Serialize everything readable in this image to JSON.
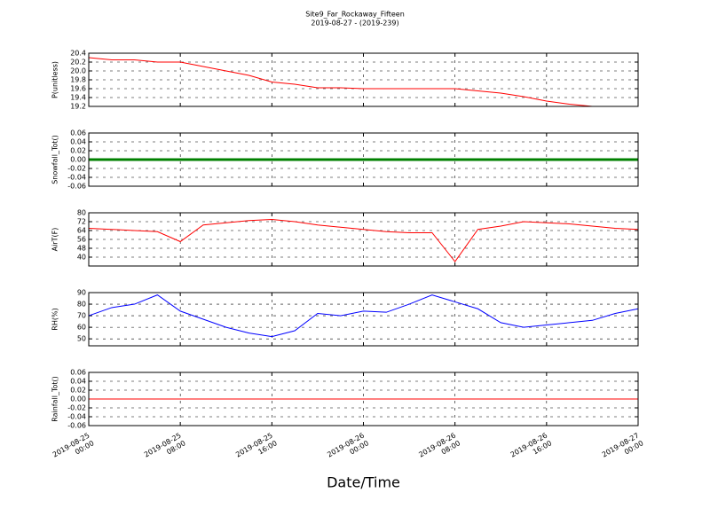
{
  "chart_data": [
    {
      "type": "line",
      "title": "Site9_Far_Rockaway_Fifteen",
      "subtitle": "2019-08-27 - (2019-239)",
      "ylabel": "P(unitless)",
      "color": "#ff0000",
      "grid": true,
      "x": [
        "2019-08-25 00:00",
        "2019-08-25 02:00",
        "2019-08-25 04:00",
        "2019-08-25 06:00",
        "2019-08-25 08:00",
        "2019-08-25 10:00",
        "2019-08-25 12:00",
        "2019-08-25 14:00",
        "2019-08-25 16:00",
        "2019-08-25 18:00",
        "2019-08-25 20:00",
        "2019-08-25 22:00",
        "2019-08-26 00:00",
        "2019-08-26 02:00",
        "2019-08-26 04:00",
        "2019-08-26 06:00",
        "2019-08-26 08:00",
        "2019-08-26 10:00",
        "2019-08-26 12:00",
        "2019-08-26 14:00",
        "2019-08-26 16:00",
        "2019-08-26 18:00",
        "2019-08-26 20:00",
        "2019-08-26 22:00",
        "2019-08-27 00:00"
      ],
      "values": [
        20.3,
        20.25,
        20.25,
        20.2,
        20.2,
        20.1,
        20.0,
        19.9,
        19.75,
        19.7,
        19.62,
        19.62,
        19.6,
        19.6,
        19.6,
        19.6,
        19.6,
        19.55,
        19.5,
        19.42,
        19.32,
        19.25,
        19.2,
        19.2,
        19.2
      ],
      "xlim": [
        "2019-08-25 00:00",
        "2019-08-27 00:00"
      ],
      "ylim": [
        19.2,
        20.4
      ],
      "yticks": [
        19.2,
        19.4,
        19.6,
        19.8,
        {
          "value": 20,
          "label": "20.0"
        },
        20.2,
        20.4
      ]
    },
    {
      "type": "line",
      "ylabel": "Snowfall_Tot()",
      "color": "#008000",
      "grid": true,
      "x": [
        "2019-08-25 00:00",
        "2019-08-27 00:00"
      ],
      "values": [
        0,
        0
      ],
      "xlim": [
        "2019-08-25 00:00",
        "2019-08-27 00:00"
      ],
      "ylim": [
        -0.06,
        0.06
      ],
      "yticks": [
        -0.06,
        -0.04,
        -0.02,
        {
          "value": 0,
          "label": "0.00"
        },
        0.02,
        0.04,
        0.06
      ]
    },
    {
      "type": "line",
      "ylabel": "AirT(F)",
      "color": "#ff0000",
      "grid": true,
      "x": [
        "2019-08-25 00:00",
        "2019-08-25 02:00",
        "2019-08-25 04:00",
        "2019-08-25 06:00",
        "2019-08-25 08:00",
        "2019-08-25 10:00",
        "2019-08-25 12:00",
        "2019-08-25 14:00",
        "2019-08-25 16:00",
        "2019-08-25 18:00",
        "2019-08-25 20:00",
        "2019-08-25 22:00",
        "2019-08-26 00:00",
        "2019-08-26 02:00",
        "2019-08-26 04:00",
        "2019-08-26 06:00",
        "2019-08-26 08:00",
        "2019-08-26 10:00",
        "2019-08-26 12:00",
        "2019-08-26 14:00",
        "2019-08-26 16:00",
        "2019-08-26 18:00",
        "2019-08-26 20:00",
        "2019-08-26 22:00",
        "2019-08-27 00:00"
      ],
      "values": [
        66,
        65,
        64,
        63,
        54,
        69,
        71,
        73,
        74,
        72,
        69,
        67,
        65,
        63,
        62,
        62,
        36,
        65,
        68,
        72,
        71,
        70,
        68,
        66,
        65
      ],
      "xlim": [
        "2019-08-25 00:00",
        "2019-08-27 00:00"
      ],
      "ylim": [
        32,
        80
      ],
      "yticks": [
        40,
        48,
        56,
        64,
        72,
        80
      ]
    },
    {
      "type": "line",
      "ylabel": "RH(%)",
      "color": "#0000ff",
      "grid": true,
      "x": [
        "2019-08-25 00:00",
        "2019-08-25 02:00",
        "2019-08-25 04:00",
        "2019-08-25 06:00",
        "2019-08-25 08:00",
        "2019-08-25 10:00",
        "2019-08-25 12:00",
        "2019-08-25 14:00",
        "2019-08-25 16:00",
        "2019-08-25 18:00",
        "2019-08-25 20:00",
        "2019-08-25 22:00",
        "2019-08-26 00:00",
        "2019-08-26 02:00",
        "2019-08-26 04:00",
        "2019-08-26 06:00",
        "2019-08-26 08:00",
        "2019-08-26 10:00",
        "2019-08-26 12:00",
        "2019-08-26 14:00",
        "2019-08-26 16:00",
        "2019-08-26 18:00",
        "2019-08-26 20:00",
        "2019-08-26 22:00",
        "2019-08-27 00:00"
      ],
      "values": [
        70,
        77,
        80,
        88,
        74,
        67,
        60,
        55,
        52,
        57,
        72,
        70,
        74,
        73,
        80,
        88,
        82,
        76,
        64,
        60,
        62,
        64,
        66,
        72,
        76
      ],
      "xlim": [
        "2019-08-25 00:00",
        "2019-08-27 00:00"
      ],
      "ylim": [
        44,
        90
      ],
      "yticks": [
        50,
        60,
        70,
        80,
        90
      ]
    },
    {
      "type": "line",
      "ylabel": "Rainfall_Tot()",
      "xlabel": "Date/Time",
      "color": "#ff0000",
      "grid": true,
      "x": [
        "2019-08-25 00:00",
        "2019-08-27 00:00"
      ],
      "values": [
        0,
        0
      ],
      "xlim": [
        "2019-08-25 00:00",
        "2019-08-27 00:00"
      ],
      "ylim": [
        -0.06,
        0.06
      ],
      "yticks": [
        -0.06,
        -0.04,
        -0.02,
        {
          "value": 0,
          "label": "0.00"
        },
        0.02,
        0.04,
        0.06
      ],
      "xticks": [
        "2019-08-25 00:00",
        "2019-08-25 08:00",
        "2019-08-25 16:00",
        "2019-08-26 00:00",
        "2019-08-26 08:00",
        "2019-08-26 16:00",
        "2019-08-27 00:00"
      ]
    }
  ]
}
